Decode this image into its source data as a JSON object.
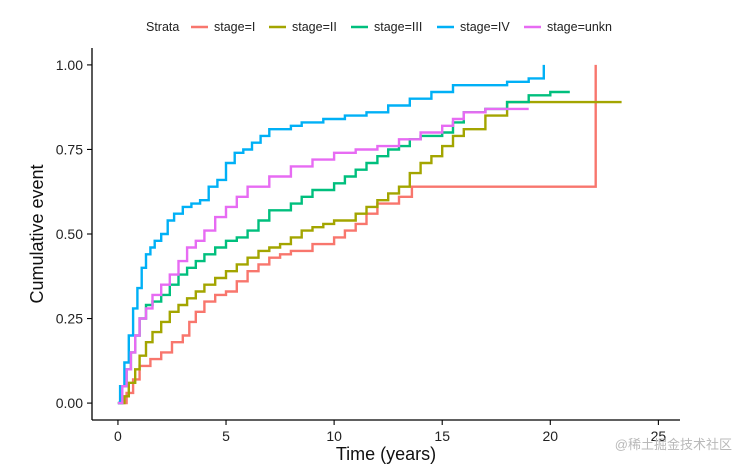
{
  "chart_data": {
    "type": "line",
    "step": true,
    "title": "",
    "xlabel": "Time (years)",
    "ylabel": "Cumulative event",
    "xlim": [
      -1.2,
      26
    ],
    "ylim": [
      -0.05,
      1.05
    ],
    "xticks": [
      0,
      5,
      10,
      15,
      20,
      25
    ],
    "yticks": [
      0,
      0.25,
      0.5,
      0.75,
      1
    ],
    "xtick_labels": [
      "0",
      "5",
      "10",
      "15",
      "20",
      "25"
    ],
    "ytick_labels": [
      "0.00",
      "0.25",
      "0.50",
      "0.75",
      "1.00"
    ],
    "grid": false,
    "legend": {
      "title": "Strata",
      "position": "top",
      "horizontal": true
    },
    "series": [
      {
        "name": "stage=I",
        "color": "#F8766D",
        "x": [
          0,
          0.4,
          0.7,
          1.0,
          1.5,
          2.0,
          2.5,
          3.0,
          3.3,
          3.6,
          4.0,
          4.5,
          5.0,
          5.5,
          6.0,
          6.5,
          7.0,
          7.5,
          8.0,
          9.0,
          10.0,
          10.5,
          11.0,
          11.5,
          12.0,
          13.0,
          13.6,
          22.1,
          22.1,
          22.1
        ],
        "y": [
          0,
          0.03,
          0.07,
          0.11,
          0.13,
          0.15,
          0.18,
          0.2,
          0.24,
          0.27,
          0.3,
          0.32,
          0.33,
          0.36,
          0.39,
          0.41,
          0.43,
          0.44,
          0.45,
          0.47,
          0.49,
          0.51,
          0.53,
          0.56,
          0.59,
          0.61,
          0.64,
          0.64,
          0.65,
          1.0
        ]
      },
      {
        "name": "stage=II",
        "color": "#A3A500",
        "x": [
          0,
          0.3,
          0.5,
          0.8,
          1.0,
          1.3,
          1.6,
          2.0,
          2.4,
          2.8,
          3.2,
          3.6,
          4.0,
          4.5,
          5.0,
          5.5,
          6.0,
          6.5,
          7.0,
          7.5,
          8.0,
          8.5,
          9.0,
          9.5,
          10.0,
          11.0,
          11.5,
          12.0,
          12.5,
          13.0,
          13.5,
          14.0,
          14.5,
          15.0,
          15.5,
          16.0,
          17.0,
          18.0,
          23.3
        ],
        "y": [
          0,
          0.02,
          0.06,
          0.1,
          0.14,
          0.18,
          0.21,
          0.24,
          0.27,
          0.29,
          0.31,
          0.33,
          0.35,
          0.37,
          0.39,
          0.41,
          0.43,
          0.45,
          0.46,
          0.47,
          0.49,
          0.51,
          0.52,
          0.53,
          0.54,
          0.56,
          0.58,
          0.6,
          0.62,
          0.64,
          0.68,
          0.71,
          0.73,
          0.76,
          0.79,
          0.81,
          0.85,
          0.89,
          0.89
        ]
      },
      {
        "name": "stage=III",
        "color": "#00BF7D",
        "x": [
          0,
          0.2,
          0.4,
          0.6,
          0.8,
          1.0,
          1.3,
          1.6,
          2.0,
          2.4,
          2.8,
          3.2,
          3.6,
          4.0,
          4.5,
          5.0,
          5.5,
          6.0,
          6.5,
          7.0,
          8.0,
          8.5,
          9.0,
          10.0,
          10.5,
          11.0,
          11.5,
          12.0,
          12.5,
          13.0,
          13.5,
          14.0,
          15.0,
          15.5,
          16.0,
          17.0,
          18.0,
          19.0,
          20.0,
          20.9
        ],
        "y": [
          0,
          0.05,
          0.1,
          0.15,
          0.2,
          0.25,
          0.29,
          0.3,
          0.32,
          0.35,
          0.38,
          0.4,
          0.42,
          0.44,
          0.46,
          0.48,
          0.49,
          0.51,
          0.54,
          0.57,
          0.59,
          0.61,
          0.63,
          0.65,
          0.67,
          0.69,
          0.71,
          0.73,
          0.75,
          0.76,
          0.78,
          0.79,
          0.8,
          0.83,
          0.86,
          0.87,
          0.89,
          0.91,
          0.92,
          0.92
        ]
      },
      {
        "name": "stage=IV",
        "color": "#00B0F6",
        "x": [
          0,
          0.1,
          0.3,
          0.5,
          0.7,
          0.9,
          1.1,
          1.3,
          1.5,
          1.7,
          2.0,
          2.3,
          2.6,
          3.0,
          3.4,
          3.8,
          4.2,
          4.6,
          5.0,
          5.4,
          5.8,
          6.2,
          6.6,
          7.0,
          8.0,
          8.5,
          9.5,
          10.5,
          11.5,
          12.5,
          13.5,
          14.5,
          15.5,
          16.5,
          18.0,
          19.0,
          19.7,
          19.7
        ],
        "y": [
          0,
          0.05,
          0.12,
          0.2,
          0.28,
          0.34,
          0.4,
          0.44,
          0.46,
          0.48,
          0.5,
          0.54,
          0.56,
          0.58,
          0.59,
          0.6,
          0.64,
          0.66,
          0.71,
          0.74,
          0.75,
          0.77,
          0.79,
          0.81,
          0.82,
          0.83,
          0.84,
          0.85,
          0.86,
          0.88,
          0.9,
          0.92,
          0.94,
          0.94,
          0.95,
          0.96,
          0.96,
          1.0
        ]
      },
      {
        "name": "stage=unkn",
        "color": "#E76BF3",
        "x": [
          0,
          0.2,
          0.4,
          0.6,
          0.8,
          1.0,
          1.3,
          1.6,
          2.0,
          2.4,
          2.8,
          3.2,
          3.6,
          4.0,
          4.5,
          5.0,
          5.5,
          6.0,
          7.0,
          8.0,
          9.0,
          10.0,
          11.0,
          12.0,
          13.0,
          14.0,
          15.0,
          15.5,
          16.0,
          17.0,
          19.0
        ],
        "y": [
          0,
          0.05,
          0.1,
          0.15,
          0.2,
          0.25,
          0.28,
          0.32,
          0.35,
          0.38,
          0.42,
          0.46,
          0.48,
          0.51,
          0.55,
          0.58,
          0.61,
          0.64,
          0.67,
          0.7,
          0.72,
          0.74,
          0.75,
          0.76,
          0.78,
          0.8,
          0.82,
          0.84,
          0.86,
          0.87,
          0.87
        ]
      }
    ]
  },
  "watermark": "@稀土掘金技术社区"
}
